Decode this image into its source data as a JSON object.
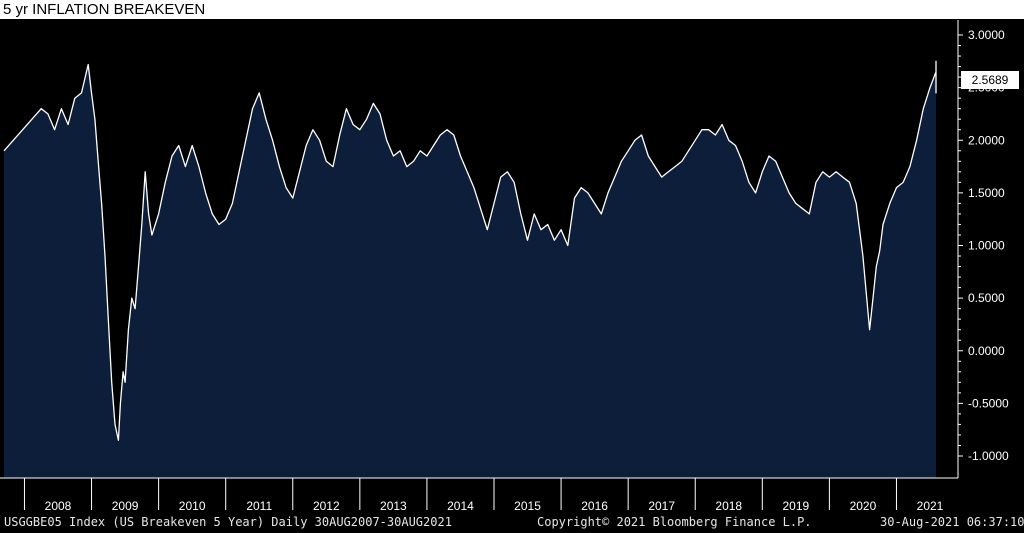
{
  "title": "5 yr INFLATION BREAKEVEN",
  "footer": {
    "left": "USGGBE05 Index (US Breakeven 5 Year)  Daily 30AUG2007-30AUG2021",
    "center": "Copyright© 2021 Bloomberg Finance L.P.",
    "right": "30-Aug-2021 06:37:10"
  },
  "colors": {
    "area": "#0c1e3a",
    "line": "#ffffff",
    "background": "#000000",
    "axis": "#ffffff"
  },
  "chart_data": {
    "type": "area",
    "title": "5 yr INFLATION BREAKEVEN",
    "ylim": [
      -1.2,
      3.1
    ],
    "y_ticks": [
      3.0,
      2.5,
      2.0,
      1.5,
      1.0,
      0.5,
      0.0,
      -0.5,
      -1.0
    ],
    "y_tick_labels": [
      "3.0000",
      "2.5000",
      "2.0000",
      "1.5000",
      "1.0000",
      "0.5000",
      "0.0000",
      "-0.5000",
      "-1.0000"
    ],
    "x_labels": [
      "2008",
      "2009",
      "2010",
      "2011",
      "2012",
      "2013",
      "2014",
      "2015",
      "2016",
      "2017",
      "2018",
      "2019",
      "2020",
      "2021"
    ],
    "last_value": 2.5689,
    "last_value_label": "2.5689",
    "grid": false,
    "series": [
      {
        "x": [
          2007.66,
          2007.75,
          2007.85,
          2007.95,
          2008.05,
          2008.15,
          2008.25,
          2008.35,
          2008.45,
          2008.5,
          2008.55,
          2008.6,
          2008.65,
          2008.7,
          2008.75,
          2008.8,
          2008.85,
          2008.9,
          2008.93,
          2008.97,
          2009.0,
          2009.05,
          2009.1,
          2009.15,
          2009.2,
          2009.25,
          2009.3,
          2009.35,
          2009.4,
          2009.5,
          2009.6,
          2009.7,
          2009.8,
          2009.9,
          2010.0,
          2010.1,
          2010.2,
          2010.3,
          2010.4,
          2010.5,
          2010.6,
          2010.7,
          2010.8,
          2010.9,
          2011.0,
          2011.1,
          2011.2,
          2011.3,
          2011.4,
          2011.5,
          2011.6,
          2011.7,
          2011.8,
          2011.9,
          2012.0,
          2012.1,
          2012.2,
          2012.3,
          2012.4,
          2012.5,
          2012.6,
          2012.7,
          2012.8,
          2012.9,
          2013.0,
          2013.1,
          2013.2,
          2013.3,
          2013.4,
          2013.5,
          2013.6,
          2013.7,
          2013.8,
          2013.9,
          2014.0,
          2014.1,
          2014.2,
          2014.3,
          2014.4,
          2014.5,
          2014.6,
          2014.7,
          2014.8,
          2014.9,
          2015.0,
          2015.1,
          2015.2,
          2015.3,
          2015.4,
          2015.5,
          2015.6,
          2015.7,
          2015.8,
          2015.9,
          2016.0,
          2016.1,
          2016.2,
          2016.3,
          2016.4,
          2016.5,
          2016.6,
          2016.7,
          2016.8,
          2016.9,
          2017.0,
          2017.1,
          2017.2,
          2017.3,
          2017.4,
          2017.5,
          2017.6,
          2017.7,
          2017.8,
          2017.9,
          2018.0,
          2018.1,
          2018.2,
          2018.3,
          2018.4,
          2018.5,
          2018.6,
          2018.7,
          2018.8,
          2018.9,
          2019.0,
          2019.1,
          2019.2,
          2019.3,
          2019.4,
          2019.5,
          2019.6,
          2019.7,
          2019.8,
          2019.9,
          2020.0,
          2020.1,
          2020.15,
          2020.2,
          2020.25,
          2020.3,
          2020.4,
          2020.5,
          2020.6,
          2020.7,
          2020.8,
          2020.9,
          2021.0,
          2021.1,
          2021.2,
          2021.3,
          2021.4,
          2021.5,
          2021.55,
          2021.6,
          2021.66
        ],
        "y": [
          1.9,
          2.3,
          2.25,
          2.1,
          2.3,
          2.15,
          2.4,
          2.45,
          2.72,
          2.45,
          2.2,
          1.8,
          1.4,
          0.9,
          0.3,
          -0.3,
          -0.7,
          -0.85,
          -0.5,
          -0.2,
          -0.3,
          0.2,
          0.5,
          0.4,
          0.8,
          1.2,
          1.7,
          1.3,
          1.1,
          1.3,
          1.6,
          1.85,
          1.95,
          1.75,
          1.95,
          1.75,
          1.5,
          1.3,
          1.2,
          1.25,
          1.4,
          1.7,
          2.0,
          2.3,
          2.45,
          2.2,
          2.0,
          1.75,
          1.55,
          1.45,
          1.7,
          1.95,
          2.1,
          2.0,
          1.8,
          1.75,
          2.05,
          2.3,
          2.15,
          2.1,
          2.2,
          2.35,
          2.25,
          2.0,
          1.85,
          1.9,
          1.75,
          1.8,
          1.9,
          1.85,
          1.95,
          2.05,
          2.1,
          2.05,
          1.85,
          1.7,
          1.55,
          1.35,
          1.15,
          1.4,
          1.65,
          1.7,
          1.6,
          1.3,
          1.05,
          1.3,
          1.15,
          1.2,
          1.05,
          1.15,
          1.0,
          1.45,
          1.55,
          1.5,
          1.4,
          1.3,
          1.5,
          1.65,
          1.8,
          1.9,
          2.0,
          2.05,
          1.85,
          1.75,
          1.65,
          1.7,
          1.75,
          1.8,
          1.9,
          2.0,
          2.1,
          2.1,
          2.05,
          2.15,
          2.0,
          1.95,
          1.8,
          1.6,
          1.5,
          1.7,
          1.85,
          1.8,
          1.65,
          1.5,
          1.4,
          1.35,
          1.3,
          1.6,
          1.7,
          1.65,
          1.7,
          1.65,
          1.6,
          1.4,
          0.9,
          0.2,
          0.5,
          0.8,
          0.95,
          1.2,
          1.4,
          1.55,
          1.6,
          1.75,
          2.0,
          2.3,
          2.5,
          2.65,
          2.75,
          2.45,
          2.6,
          2.45,
          2.5,
          2.45,
          2.57
        ]
      }
    ]
  }
}
